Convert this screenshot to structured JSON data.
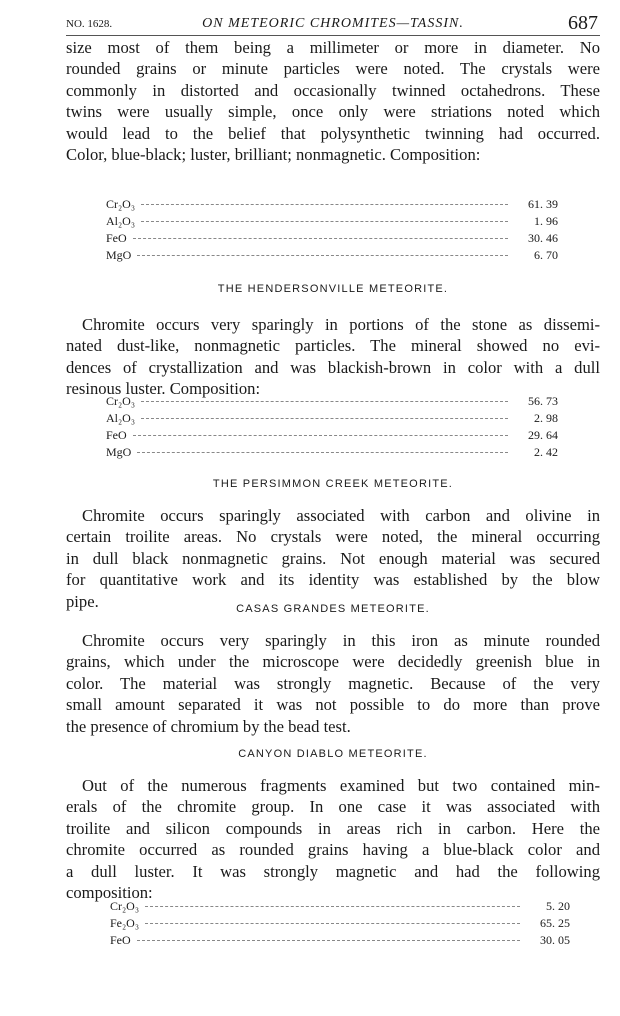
{
  "header": {
    "number": "NO. 1628.",
    "title": "ON METEORIC CHROMITES—TASSIN.",
    "page": "687"
  },
  "paragraphs": [
    {
      "lines": [
        "size most of them being a millimeter or more in diameter.  No",
        "rounded grains or minute particles were noted.  The crystals were",
        "commonly in distorted and occasionally twinned octahedrons.  These",
        "twins were usually simple, once only were striations noted which",
        "would lead to the belief that polysynthetic twinning had occurred.",
        "Color, blue-black; luster, brilliant; nonmagnetic.  Composition:"
      ]
    },
    {
      "lines": [
        "Chromite occurs very sparingly in portions of the stone as dissemi-",
        "nated dust-like, nonmagnetic particles.  The mineral showed no evi-",
        "dences of crystallization and was blackish-brown in color with a dull",
        "resinous luster.  Composition:"
      ]
    },
    {
      "lines": [
        "Chromite occurs sparingly associated with carbon and olivine in",
        "certain troilite areas.  No crystals were noted, the mineral occurring",
        "in dull black nonmagnetic grains.  Not enough material was secured",
        "for quantitative work and its identity was established by the blow",
        "pipe."
      ]
    },
    {
      "lines": [
        "Chromite occurs very sparingly in this iron as minute rounded",
        "grains, which under the microscope were decidedly greenish blue in",
        "color.  The material was strongly magnetic.  Because of the very",
        "small amount separated it was not possible to do more than prove",
        "the presence of chromium by the bead test."
      ]
    },
    {
      "lines": [
        "Out of the numerous fragments examined but two contained min-",
        "erals of the chromite group.  In one case it was associated with",
        "troilite and silicon compounds in areas rich in carbon.  Here the",
        "chromite occurred as rounded grains having a blue-black color and",
        "a dull luster.  It was strongly magnetic and had the following",
        "composition:"
      ]
    }
  ],
  "headings": [
    "THE HENDERSONVILLE METEORITE.",
    "THE PERSIMMON CREEK METEORITE.",
    "CASAS GRANDES METEORITE.",
    "CANYON DIABLO METEORITE."
  ],
  "tables": [
    {
      "rows": [
        {
          "label": "Cr₂O₃",
          "value": "61. 39"
        },
        {
          "label": "Al₂O₃",
          "value": "1. 96"
        },
        {
          "label": "FeO",
          "value": "30. 46"
        },
        {
          "label": "MgO",
          "value": "6. 70"
        }
      ]
    },
    {
      "rows": [
        {
          "label": "Cr₂O₃",
          "value": "56. 73"
        },
        {
          "label": "Al₂O₃",
          "value": "2. 98"
        },
        {
          "label": "FeO",
          "value": "29. 64"
        },
        {
          "label": "MgO",
          "value": "2. 42"
        }
      ]
    },
    {
      "rows": [
        {
          "label": "Cr₂O₃",
          "value": "5. 20"
        },
        {
          "label": "Fe₂O₃",
          "value": "65. 25"
        },
        {
          "label": "FeO",
          "value": "30. 05"
        }
      ]
    }
  ]
}
